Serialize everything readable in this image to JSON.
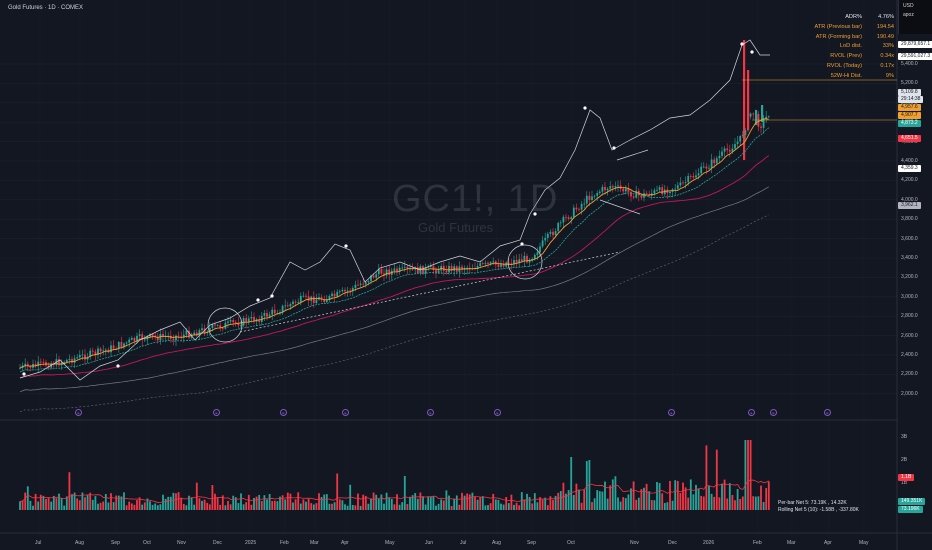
{
  "header": {
    "title": "Gold Futures · 1D · COMEX"
  },
  "currency": {
    "code": "USD",
    "sub": "apoz"
  },
  "watermark": {
    "symbol": "GC1!, 1D",
    "name": "Gold Futures"
  },
  "stats": [
    {
      "label": "ADR%",
      "value": "4.76%"
    },
    {
      "label": "ATR (Previous bar)",
      "value": "194.54"
    },
    {
      "label": "ATR (Forming bar)",
      "value": "190.49"
    },
    {
      "label": "LoD dist.",
      "value": "33%"
    },
    {
      "label": "RVOL (Prev)",
      "value": "0.34x"
    },
    {
      "label": "RVOL (Today)",
      "value": "0.17x"
    },
    {
      "label": "52W-Hi Dist.",
      "value": "9%"
    }
  ],
  "y_axis": [
    "5,400.0",
    "5,200.0",
    "5,000.0",
    "4,800.0",
    "4,600.0",
    "4,400.0",
    "4,200.0",
    "4,000.0",
    "3,800.0",
    "3,600.0",
    "3,400.0",
    "3,200.0",
    "3,000.0",
    "2,800.0",
    "2,600.0",
    "2,400.0",
    "2,200.0",
    "2,000.0"
  ],
  "price_labels": [
    {
      "text": "29,879,657.1",
      "bg": "#ffffff",
      "fg": "#131722"
    },
    {
      "text": "29,591,027.3",
      "bg": "#ffffff",
      "fg": "#131722"
    },
    {
      "text": "5,109.8",
      "bg": "#dfe3ea",
      "fg": "#131722"
    },
    {
      "text": "29:14:38",
      "bg": "#dfe3ea",
      "fg": "#131722"
    },
    {
      "text": "4,957.6",
      "bg": "#f0a030",
      "fg": "#131722"
    },
    {
      "text": "4,907.7",
      "bg": "#f0a030",
      "fg": "#131722"
    },
    {
      "text": "4,873.2",
      "bg": "#26a69a",
      "fg": "#ffffff"
    },
    {
      "text": "4,651.5",
      "bg": "#f23645",
      "fg": "#ffffff"
    },
    {
      "text": "4,359.3",
      "bg": "#ffffff",
      "fg": "#131722"
    },
    {
      "text": "3,962.1",
      "bg": "#b2b5be",
      "fg": "#131722"
    }
  ],
  "volume_axis": [
    "3B",
    "2B",
    "1B"
  ],
  "volume_labels": [
    {
      "text": "1.1B",
      "bg": "#f23645",
      "fg": "#ffffff"
    },
    {
      "text": "149.351K",
      "bg": "#26a69a",
      "fg": "#ffffff"
    },
    {
      "text": "73.196K",
      "bg": "#26a69a",
      "fg": "#ffffff"
    }
  ],
  "volume_text": {
    "line1": "Per-bar Net 5: 73.19K , 14.32K",
    "line2": "Rolling Net 5 (10): -1.58B , -337.80K"
  },
  "x_axis": [
    "Jul",
    "Aug",
    "Sep",
    "Oct",
    "Nov",
    "Dec",
    "2025",
    "Feb",
    "Mar",
    "Apr",
    "May",
    "Jun",
    "Jul",
    "Aug",
    "Sep",
    "Oct",
    "Nov",
    "Dec",
    "2026",
    "Feb",
    "Mar",
    "Apr",
    "May"
  ],
  "events": [
    {
      "text": "E"
    },
    {
      "text": "E"
    },
    {
      "text": "E"
    },
    {
      "text": "E"
    },
    {
      "text": "E"
    },
    {
      "text": "E"
    },
    {
      "text": "E"
    },
    {
      "text": "E"
    },
    {
      "text": "E"
    },
    {
      "text": "E"
    }
  ],
  "colors": {
    "up": "#26a69a",
    "down": "#f23645",
    "ema_fast": "#f0a030",
    "ema_mid": "#26a69a",
    "sma_red": "#c2185b",
    "overlay": "#d1d4dc",
    "volume_up": "#26a69a",
    "volume_down": "#f23645"
  }
}
